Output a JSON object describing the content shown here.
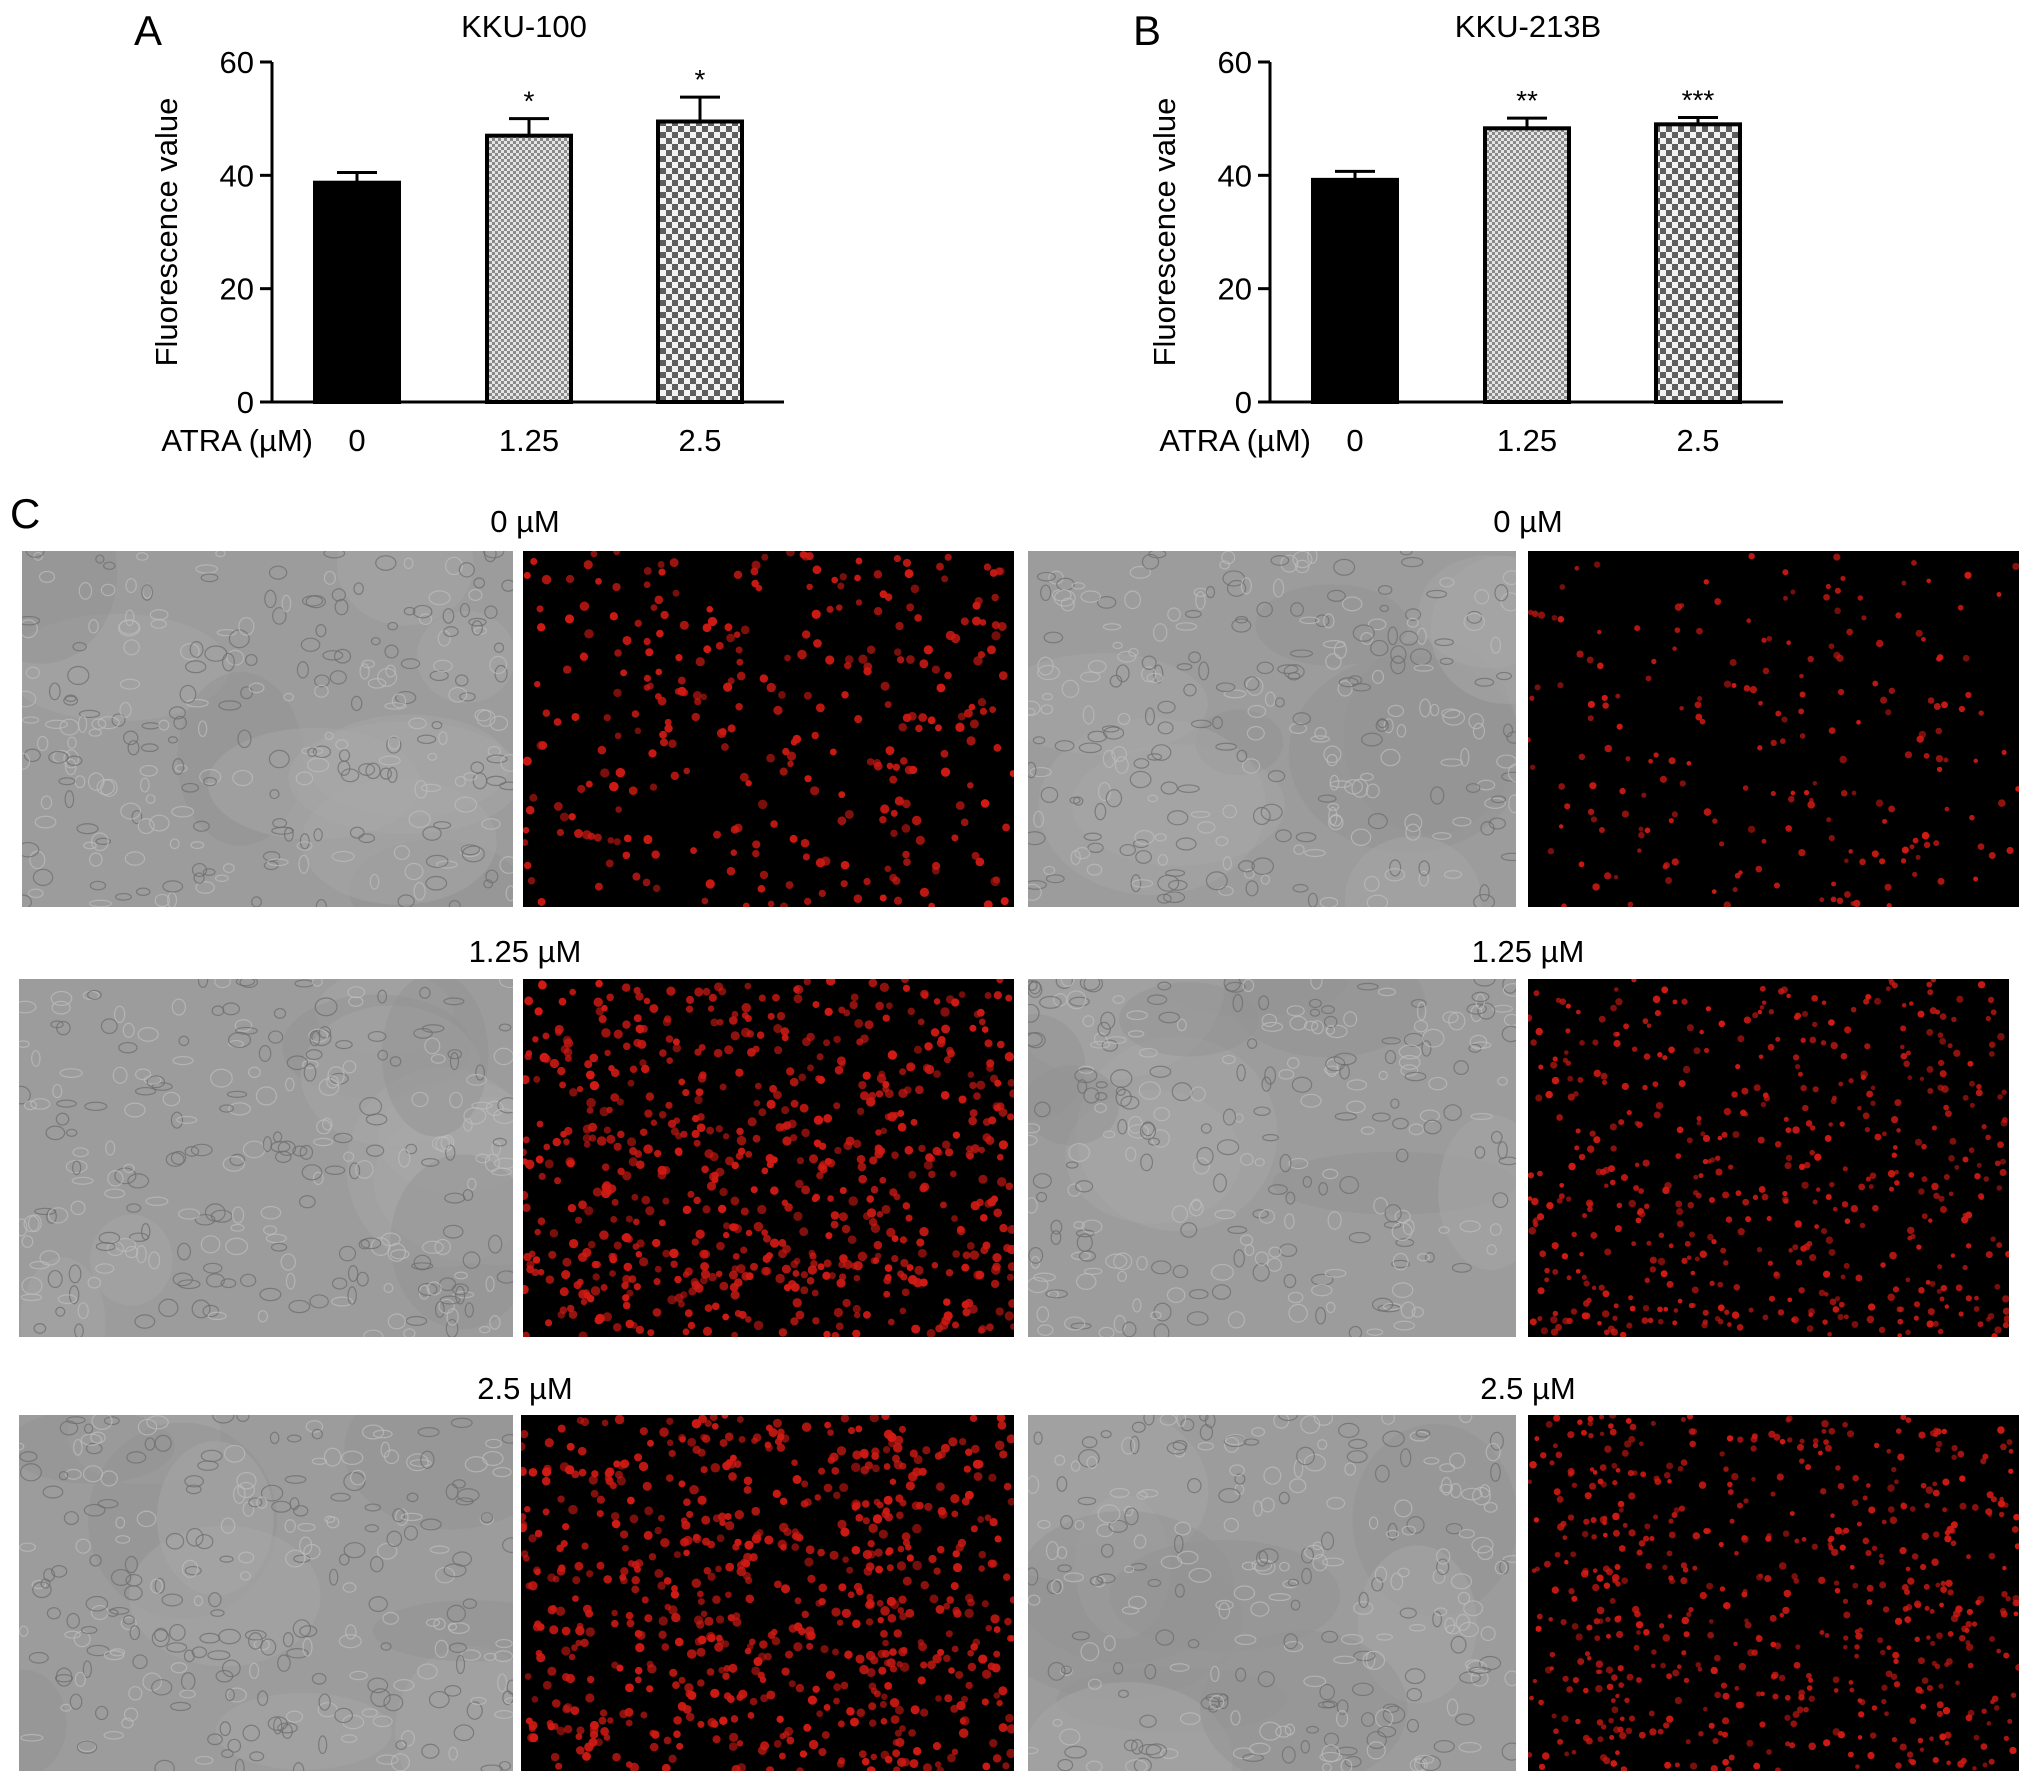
{
  "panels": {
    "A": "A",
    "B": "B",
    "C": "C"
  },
  "chart_data": [
    {
      "type": "bar",
      "panel": "A",
      "title": "KKU-100",
      "ylabel": "Fluorescence value",
      "xlabel_prefix": "ATRA (µM)",
      "categories": [
        "0",
        "1.25",
        "2.5"
      ],
      "values": [
        38.7,
        47.0,
        49.5
      ],
      "errors": [
        1.8,
        3.0,
        4.3
      ],
      "significance": [
        "",
        "*",
        "*"
      ],
      "patterns": [
        "solid",
        "fine-checker",
        "checker"
      ],
      "ylim": [
        0,
        60
      ],
      "yticks": [
        0,
        20,
        40,
        60
      ],
      "grid": false,
      "legend": "none"
    },
    {
      "type": "bar",
      "panel": "B",
      "title": "KKU-213B",
      "ylabel": "Fluorescence value",
      "xlabel_prefix": "ATRA (µM)",
      "categories": [
        "0",
        "1.25",
        "2.5"
      ],
      "values": [
        39.2,
        48.3,
        49.0
      ],
      "errors": [
        1.5,
        1.8,
        1.2
      ],
      "significance": [
        "",
        "**",
        "***"
      ],
      "patterns": [
        "solid",
        "fine-checker",
        "checker"
      ],
      "ylim": [
        0,
        60
      ],
      "yticks": [
        0,
        20,
        40,
        60
      ],
      "grid": false,
      "legend": "none"
    }
  ],
  "micrographs": {
    "rows": [
      {
        "left_label": "0 µM",
        "right_label": "0 µM"
      },
      {
        "left_label": "1.25 µM",
        "right_label": "1.25 µM"
      },
      {
        "left_label": "2.5 µM",
        "right_label": "2.5 µM"
      }
    ],
    "colors": {
      "brightfield": "#9c9c9c",
      "fluorescence_bg": "#000000",
      "fluorescence_dot": "#d21a14"
    },
    "fluor_density": [
      [
        0.45,
        0.3
      ],
      [
        1.0,
        0.75
      ],
      [
        1.0,
        0.85
      ]
    ]
  }
}
